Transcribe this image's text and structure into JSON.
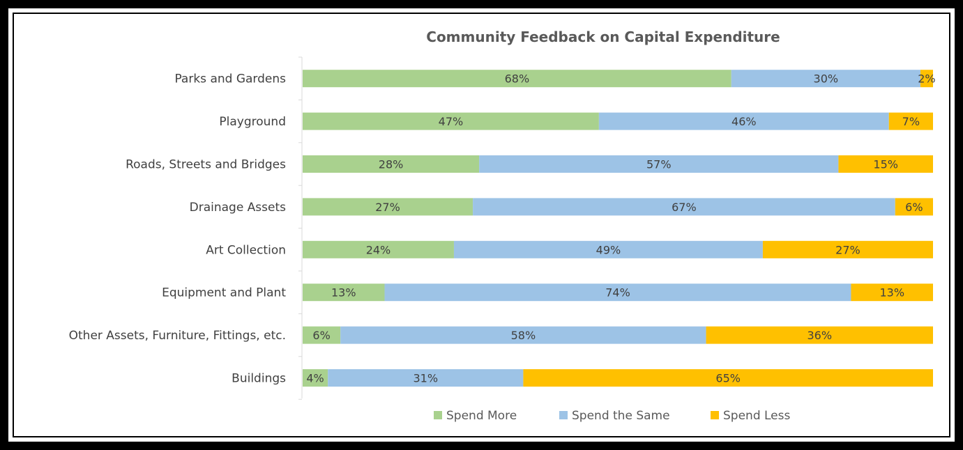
{
  "chart_data": {
    "type": "bar",
    "orientation": "horizontal",
    "stacked": "percent",
    "title": "Community Feedback on Capital Expenditure",
    "categories": [
      "Parks and Gardens",
      "Playground",
      "Roads, Streets and Bridges",
      "Drainage Assets",
      "Art Collection",
      "Equipment and Plant",
      "Other Assets, Furniture, Fittings, etc.",
      "Buildings"
    ],
    "series": [
      {
        "name": "Spend More",
        "color": "#a9d18e",
        "values": [
          68,
          47,
          28,
          27,
          24,
          13,
          6,
          4
        ]
      },
      {
        "name": "Spend the Same",
        "color": "#9dc3e6",
        "values": [
          30,
          46,
          57,
          67,
          49,
          74,
          58,
          31
        ]
      },
      {
        "name": "Spend Less",
        "color": "#ffc000",
        "values": [
          2,
          7,
          15,
          6,
          27,
          13,
          36,
          65
        ]
      }
    ],
    "data_label_suffix": "%",
    "xlim": [
      0,
      100
    ],
    "legend_position": "bottom",
    "grid": false
  }
}
